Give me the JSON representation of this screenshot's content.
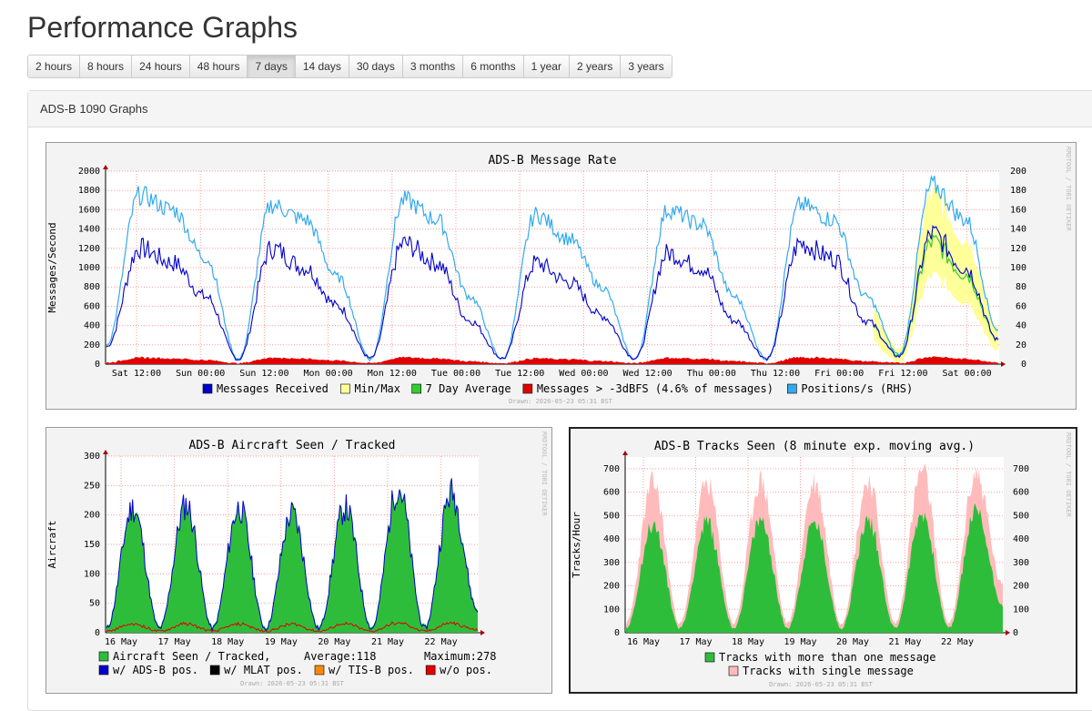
{
  "page": {
    "title": "Performance Graphs"
  },
  "tabs": [
    {
      "label": "2 hours"
    },
    {
      "label": "8 hours"
    },
    {
      "label": "24 hours"
    },
    {
      "label": "48 hours"
    },
    {
      "label": "7 days",
      "active": true
    },
    {
      "label": "14 days"
    },
    {
      "label": "30 days"
    },
    {
      "label": "3 months"
    },
    {
      "label": "6 months"
    },
    {
      "label": "1 year"
    },
    {
      "label": "2 years"
    },
    {
      "label": "3 years"
    }
  ],
  "panel": {
    "heading": "ADS-B 1090 Graphs"
  },
  "watermark": "RRDTOOL / TOBI OETIKER",
  "drawn": "Drawn: 2026-05-23 05:31 BST",
  "colors": {
    "messages": "#0000cc",
    "minmax": "#ffff99",
    "avg": "#33cc33",
    "strong": "#e00000",
    "positions": "#33aaee",
    "aircraft": "#2ebd3a",
    "single": "#ffbbbb",
    "grid": "#ff9999"
  },
  "chart_data": [
    {
      "type": "line",
      "title": "ADS-B Message Rate",
      "ylabel": "Messages/Second",
      "ylim": [
        0,
        2000
      ],
      "yticks": [
        "0",
        "200",
        "400",
        "600",
        "800",
        "1000",
        "1200",
        "1400",
        "1600",
        "1800",
        "2000"
      ],
      "y2ticks": [
        "0",
        "20",
        "40",
        "60",
        "80",
        "100",
        "120",
        "140",
        "160",
        "180",
        "200"
      ],
      "xticks": [
        "Sat 12:00",
        "Sun 00:00",
        "Sun 12:00",
        "Mon 00:00",
        "Mon 12:00",
        "Tue 00:00",
        "Tue 12:00",
        "Wed 00:00",
        "Wed 12:00",
        "Thu 00:00",
        "Thu 12:00",
        "Fri 00:00",
        "Fri 12:00",
        "Sat 00:00"
      ],
      "legend": [
        {
          "name": "Messages Received",
          "color": "#0000cc"
        },
        {
          "name": "Min/Max",
          "color": "#ffff99"
        },
        {
          "name": "7 Day Average",
          "color": "#33cc33"
        },
        {
          "name": "Messages > -3dBFS (4.6% of messages)",
          "color": "#e00000"
        },
        {
          "name": "Positions/s (RHS)",
          "color": "#33aaee"
        }
      ],
      "series": [
        {
          "name": "Messages Received",
          "values": [
            180,
            1200,
            1050,
            700,
            50,
            1200,
            1000,
            600,
            60,
            1250,
            1050,
            450,
            60,
            1050,
            850,
            500,
            60,
            1150,
            1000,
            450,
            60,
            1250,
            1100,
            450,
            80,
            1350,
            1000,
            250
          ]
        },
        {
          "name": "Positions/s (RHS)",
          "values": [
            20,
            175,
            160,
            110,
            5,
            165,
            150,
            90,
            5,
            170,
            150,
            70,
            5,
            155,
            130,
            80,
            5,
            160,
            145,
            70,
            5,
            165,
            150,
            70,
            10,
            185,
            150,
            35
          ]
        }
      ]
    },
    {
      "type": "area",
      "title": "ADS-B Aircraft Seen / Tracked",
      "ylabel": "Aircraft",
      "ylim": [
        0,
        300
      ],
      "yticks": [
        "0",
        "50",
        "100",
        "150",
        "200",
        "250",
        "300"
      ],
      "xticks": [
        "16 May",
        "17 May",
        "18 May",
        "19 May",
        "20 May",
        "21 May",
        "22 May"
      ],
      "legend": [
        {
          "name": "Aircraft Seen / Tracked,",
          "color": "#2ebd3a"
        },
        {
          "name": "w/ ADS-B pos.",
          "color": "#0000cc"
        },
        {
          "name": "w/ MLAT pos.",
          "color": "#000000"
        },
        {
          "name": "w/ TIS-B pos.",
          "color": "#ff8800"
        },
        {
          "name": "w/o pos.",
          "color": "#e00000"
        }
      ],
      "average_label": "Average:118",
      "maximum_label": "Maximum:278",
      "series": [
        {
          "name": "Aircraft Seen / Tracked",
          "values": [
            10,
            215,
            10,
            220,
            10,
            215,
            10,
            205,
            10,
            215,
            10,
            250,
            10,
            240,
            40
          ]
        }
      ]
    },
    {
      "type": "area",
      "title": "ADS-B Tracks Seen (8 minute exp. moving avg.)",
      "ylabel": "Tracks/Hour",
      "ylim": [
        0,
        750
      ],
      "yticks": [
        "0",
        "100",
        "200",
        "300",
        "400",
        "500",
        "600",
        "700"
      ],
      "xticks": [
        "16 May",
        "17 May",
        "18 May",
        "19 May",
        "20 May",
        "21 May",
        "22 May"
      ],
      "legend": [
        {
          "name": "Tracks with more than one message",
          "color": "#2ebd3a"
        },
        {
          "name": "Tracks with single message",
          "color": "#ffbbbb"
        }
      ],
      "series": [
        {
          "name": "Tracks with more than one message",
          "values": [
            20,
            460,
            20,
            470,
            20,
            480,
            20,
            470,
            20,
            480,
            20,
            510,
            20,
            520,
            120
          ]
        },
        {
          "name": "Tracks with single message",
          "values": [
            40,
            640,
            40,
            640,
            40,
            650,
            40,
            640,
            40,
            650,
            40,
            690,
            40,
            680,
            200
          ]
        }
      ]
    }
  ]
}
